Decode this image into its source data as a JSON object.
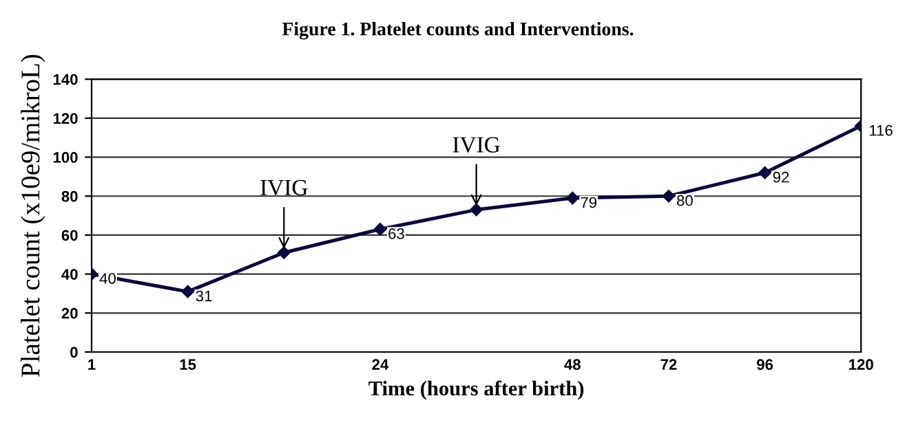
{
  "chart_data": {
    "type": "line",
    "title": "Figure 1. Platelet counts and Interventions.",
    "xlabel": "Time (hours after birth)",
    "ylabel": "Platelet count (x10e9/mikroL)",
    "categories": [
      "1",
      "15",
      null,
      "24",
      null,
      "48",
      "72",
      "96",
      "120"
    ],
    "series": [
      {
        "color": "#0a0a3c",
        "values": [
          40,
          31,
          51,
          63,
          73,
          79,
          80,
          92,
          116
        ],
        "value_labels": [
          "40",
          "31",
          null,
          "63",
          null,
          "79",
          "80",
          "92",
          "116"
        ]
      }
    ],
    "annotations": [
      {
        "text": "IVIG",
        "y": 51
      },
      {
        "text": "IVIG",
        "y": 73
      }
    ],
    "ylim": [
      0,
      140
    ],
    "yticks": [
      0,
      20,
      40,
      60,
      80,
      100,
      120,
      140
    ],
    "grid": "y",
    "marker": "diamond",
    "line_style": "solid",
    "legend": false
  }
}
